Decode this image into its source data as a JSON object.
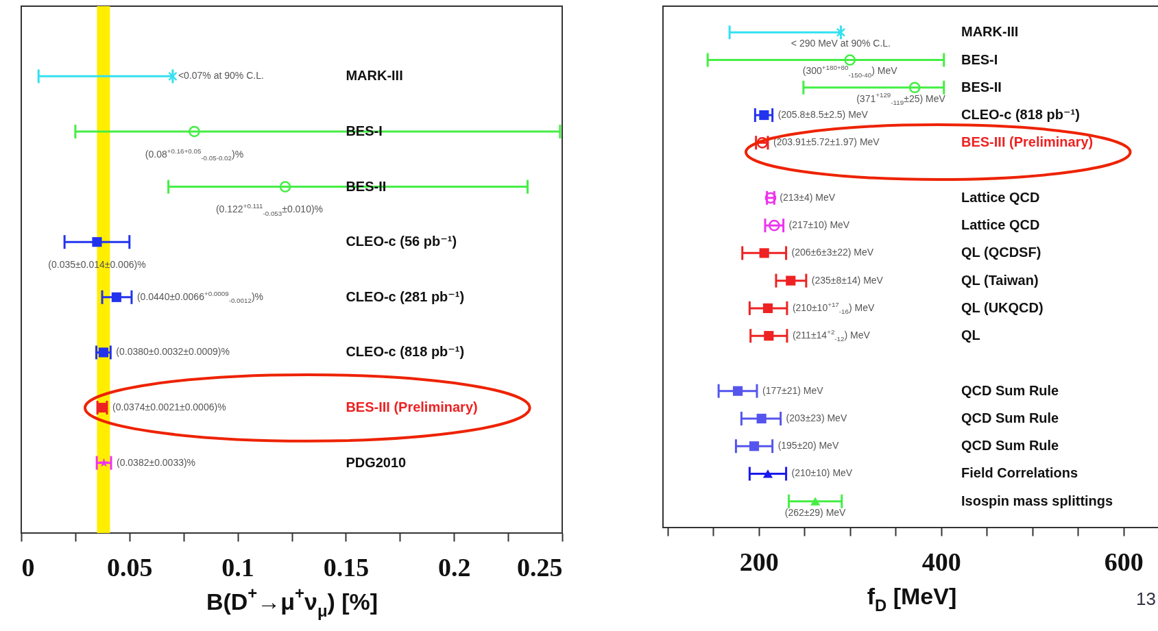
{
  "chart_data": [
    {
      "type": "scatter",
      "orientation": "horizontal",
      "xlabel": "B(D$^{+}$→μ$^{+}$ν$_{μ}$)  [%]",
      "categories": [
        "MARK-III",
        "BES-I",
        "BES-II",
        "CLEO-c (56 pb⁻¹)",
        "CLEO-c (281 pb⁻¹)",
        "CLEO-c (818 pb⁻¹)",
        null,
        "PDG2010"
      ],
      "xlim": [
        0,
        0.25
      ],
      "xticks": [
        0,
        {
          "value": 0.025,
          "label": null
        },
        0.05,
        {
          "value": 0.075,
          "label": null
        },
        0.1,
        {
          "value": 0.125,
          "label": null
        },
        0.15,
        {
          "value": 0.175,
          "label": null
        },
        0.2,
        {
          "value": 0.225,
          "label": null
        },
        0.25
      ],
      "bands": [
        {
          "axis": "x",
          "from": 0.035,
          "to": 0.041,
          "color": "#ffee00"
        }
      ],
      "series": [
        {
          "color": "#33e0f0",
          "marker": "cross",
          "values": [
            0.07,
            null,
            null,
            null,
            null,
            null,
            null,
            null
          ],
          "errors": [
            [
              0.008,
              0.07
            ],
            null,
            null,
            null,
            null,
            null,
            null,
            null
          ],
          "value_labels": [
            "<0.07% at 90% C.L.",
            null,
            null,
            null,
            null,
            null,
            null,
            null
          ]
        },
        {
          "color": "#44ee44",
          "marker": "circle",
          "values": [
            null,
            0.08,
            0.122,
            null,
            null,
            null,
            null,
            null
          ],
          "errors": [
            null,
            [
              0.025,
              0.249
            ],
            [
              0.068,
              0.234
            ],
            null,
            null,
            null,
            null,
            null
          ],
          "value_labels": [
            null,
            "(0.08$^{+0.16+0.05}$$_{-0.05-0.02}$)%",
            "(0.122$^{+0.111}$$_{-0.053}$±0.010)%",
            null,
            null,
            null,
            null,
            null
          ]
        },
        {
          "color": "#2233ee",
          "marker": "square",
          "values": [
            null,
            null,
            null,
            0.035,
            0.044,
            0.038,
            null,
            null
          ],
          "errors": [
            null,
            null,
            null,
            [
              0.02,
              0.05
            ],
            [
              0.0374,
              0.051
            ],
            [
              0.0347,
              0.0413
            ],
            null,
            null
          ],
          "value_labels": [
            null,
            null,
            null,
            "(0.035±0.014±0.006)%",
            "(0.0440±0.0066$^{+0.0009}$$_{-0.0012}$)%",
            "(0.0380±0.0032±0.0009)%",
            null,
            null
          ]
        },
        {
          "name": "BES-III (Preliminary)",
          "color": "#ee2222",
          "marker": "square",
          "values": [
            null,
            null,
            null,
            null,
            null,
            null,
            0.0374,
            null
          ],
          "errors": [
            null,
            null,
            null,
            null,
            null,
            null,
            [
              0.0352,
              0.0396
            ],
            null
          ],
          "value_labels": [
            null,
            null,
            null,
            null,
            null,
            null,
            "(0.0374±0.0021±0.0006)%",
            null
          ]
        },
        {
          "color": "#ee33ee",
          "marker": "star",
          "values": [
            null,
            null,
            null,
            null,
            null,
            null,
            null,
            0.0382
          ],
          "errors": [
            null,
            null,
            null,
            null,
            null,
            null,
            null,
            [
              0.0349,
              0.0415
            ]
          ],
          "value_labels": [
            null,
            null,
            null,
            null,
            null,
            null,
            null,
            "(0.0382±0.0033)%"
          ]
        }
      ]
    },
    {
      "type": "scatter",
      "orientation": "horizontal",
      "xlabel": "f$_{D}$ [MeV]",
      "categories": [
        "MARK-III",
        "BES-I",
        "BES-II",
        "CLEO-c (818 pb⁻¹)",
        null,
        null,
        "Lattice QCD",
        "Lattice QCD",
        "QL (QCDSF)",
        "QL (Taiwan)",
        "QL (UKQCD)",
        "QL",
        null,
        "QCD Sum Rule",
        "QCD Sum Rule",
        "QCD Sum Rule",
        "Field Correlations",
        "Isospin mass splittings"
      ],
      "xlim": [
        95,
        640
      ],
      "xticks": [
        {
          "value": 100,
          "label": null
        },
        {
          "value": 150,
          "label": null
        },
        200,
        {
          "value": 250,
          "label": null
        },
        {
          "value": 300,
          "label": null
        },
        {
          "value": 350,
          "label": null
        },
        400,
        {
          "value": 450,
          "label": null
        },
        {
          "value": 500,
          "label": null
        },
        {
          "value": 550,
          "label": null
        },
        600
      ],
      "annotations": [
        "13"
      ],
      "series": [
        {
          "color": "#33e0f0",
          "marker": "cross",
          "values": [
            290,
            null,
            null,
            null,
            null,
            null,
            null,
            null,
            null,
            null,
            null,
            null,
            null,
            null,
            null,
            null,
            null,
            null
          ],
          "errors": [
            [
              168,
              290
            ],
            null,
            null,
            null,
            null,
            null,
            null,
            null,
            null,
            null,
            null,
            null,
            null,
            null,
            null,
            null,
            null,
            null
          ],
          "value_labels": [
            "< 290 MeV at 90% C.L.",
            null,
            null,
            null,
            null,
            null,
            null,
            null,
            null,
            null,
            null,
            null,
            null,
            null,
            null,
            null,
            null,
            null
          ]
        },
        {
          "color": "#44ee44",
          "marker": "circle",
          "values": [
            null,
            300,
            371,
            null,
            null,
            null,
            null,
            null,
            null,
            null,
            null,
            null,
            null,
            null,
            null,
            null,
            null,
            null
          ],
          "errors": [
            null,
            [
              144,
              403
            ],
            [
              249,
              403
            ],
            null,
            null,
            null,
            null,
            null,
            null,
            null,
            null,
            null,
            null,
            null,
            null,
            null,
            null,
            null
          ],
          "value_labels": [
            null,
            "(300$^{+180+80}$$_{-150-40}$) MeV",
            "(371$^{+129}$$_{-119}$±25) MeV",
            null,
            null,
            null,
            null,
            null,
            null,
            null,
            null,
            null,
            null,
            null,
            null,
            null,
            null,
            null
          ]
        },
        {
          "color": "#2233ee",
          "marker": "square",
          "values": [
            null,
            null,
            null,
            205.8,
            null,
            null,
            null,
            null,
            null,
            null,
            null,
            null,
            null,
            null,
            null,
            null,
            null,
            null
          ],
          "errors": [
            null,
            null,
            null,
            [
              196,
              215
            ],
            null,
            null,
            null,
            null,
            null,
            null,
            null,
            null,
            null,
            null,
            null,
            null,
            null,
            null
          ],
          "value_labels": [
            null,
            null,
            null,
            "(205.8±8.5±2.5) MeV",
            null,
            null,
            null,
            null,
            null,
            null,
            null,
            null,
            null,
            null,
            null,
            null,
            null,
            null
          ]
        },
        {
          "name": "BES-III (Preliminary)",
          "color": "#ee2222",
          "marker": "circle",
          "values": [
            null,
            null,
            null,
            null,
            203.91,
            null,
            null,
            null,
            null,
            null,
            null,
            null,
            null,
            null,
            null,
            null,
            null,
            null
          ],
          "errors": [
            null,
            null,
            null,
            null,
            [
              197,
              210
            ],
            null,
            null,
            null,
            null,
            null,
            null,
            null,
            null,
            null,
            null,
            null,
            null,
            null
          ],
          "value_labels": [
            null,
            null,
            null,
            null,
            "(203.91±5.72±1.97) MeV",
            null,
            null,
            null,
            null,
            null,
            null,
            null,
            null,
            null,
            null,
            null,
            null,
            null
          ]
        },
        {
          "color": "#ee33ee",
          "marker": "circle",
          "values": [
            null,
            null,
            null,
            null,
            null,
            null,
            213,
            217,
            null,
            null,
            null,
            null,
            null,
            null,
            null,
            null,
            null,
            null
          ],
          "errors": [
            null,
            null,
            null,
            null,
            null,
            null,
            [
              209,
              217
            ],
            [
              207,
              227
            ],
            null,
            null,
            null,
            null,
            null,
            null,
            null,
            null,
            null,
            null
          ],
          "value_labels": [
            null,
            null,
            null,
            null,
            null,
            null,
            "(213±4) MeV",
            "(217±10) MeV",
            null,
            null,
            null,
            null,
            null,
            null,
            null,
            null,
            null,
            null
          ]
        },
        {
          "color": "#ee2222",
          "marker": "square",
          "values": [
            null,
            null,
            null,
            null,
            null,
            null,
            null,
            null,
            206,
            235,
            210,
            211,
            null,
            null,
            null,
            null,
            null,
            null
          ],
          "errors": [
            null,
            null,
            null,
            null,
            null,
            null,
            null,
            null,
            [
              182,
              230
            ],
            [
              219,
              252
            ],
            [
              190,
              231
            ],
            [
              191,
              231
            ],
            null,
            null,
            null,
            null,
            null,
            null
          ],
          "value_labels": [
            null,
            null,
            null,
            null,
            null,
            null,
            null,
            null,
            "(206±6±3±22) MeV",
            "(235±8±14) MeV",
            "(210±10$^{+17}$$_{-16}$) MeV",
            "(211±14$^{+2}$$_{-12}$) MeV",
            null,
            null,
            null,
            null,
            null,
            null
          ]
        },
        {
          "color": "#5555ee",
          "marker": "square",
          "values": [
            null,
            null,
            null,
            null,
            null,
            null,
            null,
            null,
            null,
            null,
            null,
            null,
            null,
            177,
            203,
            195,
            null,
            null
          ],
          "errors": [
            null,
            null,
            null,
            null,
            null,
            null,
            null,
            null,
            null,
            null,
            null,
            null,
            null,
            [
              156,
              198
            ],
            [
              181,
              224
            ],
            [
              175,
              215
            ],
            null,
            null
          ],
          "value_labels": [
            null,
            null,
            null,
            null,
            null,
            null,
            null,
            null,
            null,
            null,
            null,
            null,
            null,
            "(177±21) MeV",
            "(203±23) MeV",
            "(195±20) MeV",
            null,
            null
          ]
        },
        {
          "color": "#1a1aee",
          "marker": "triangle",
          "values": [
            null,
            null,
            null,
            null,
            null,
            null,
            null,
            null,
            null,
            null,
            null,
            null,
            null,
            null,
            null,
            null,
            210,
            null
          ],
          "errors": [
            null,
            null,
            null,
            null,
            null,
            null,
            null,
            null,
            null,
            null,
            null,
            null,
            null,
            null,
            null,
            null,
            [
              190,
              230
            ],
            null
          ],
          "value_labels": [
            null,
            null,
            null,
            null,
            null,
            null,
            null,
            null,
            null,
            null,
            null,
            null,
            null,
            null,
            null,
            null,
            "(210±10) MeV",
            null
          ]
        },
        {
          "color": "#44ee44",
          "marker": "triangle",
          "values": [
            null,
            null,
            null,
            null,
            null,
            null,
            null,
            null,
            null,
            null,
            null,
            null,
            null,
            null,
            null,
            null,
            null,
            262
          ],
          "errors": [
            null,
            null,
            null,
            null,
            null,
            null,
            null,
            null,
            null,
            null,
            null,
            null,
            null,
            null,
            null,
            null,
            null,
            [
              233,
              291
            ]
          ],
          "value_labels": [
            null,
            null,
            null,
            null,
            null,
            null,
            null,
            null,
            null,
            null,
            null,
            null,
            null,
            null,
            null,
            null,
            null,
            "(262±29) MeV"
          ]
        }
      ]
    }
  ]
}
